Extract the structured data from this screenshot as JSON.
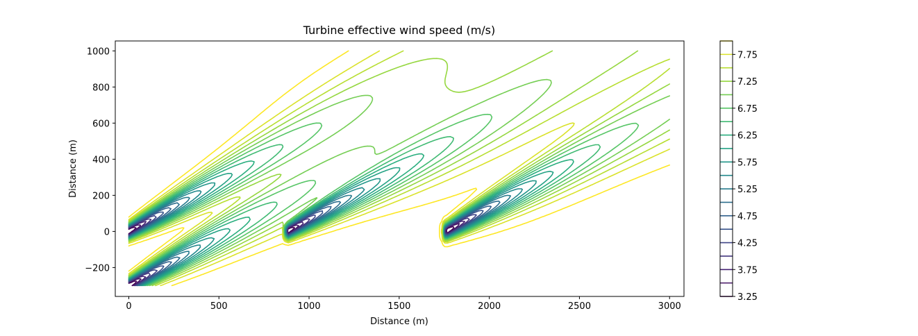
{
  "chart_data": {
    "type": "contour",
    "title": "Turbine effective wind speed (m/s)",
    "xlabel": "Distance (m)",
    "ylabel": "Distance (m)",
    "xlim": [
      -75,
      3080
    ],
    "ylim": [
      -360,
      1055
    ],
    "xticks": [
      "0",
      "500",
      "1000",
      "1500",
      "2000",
      "2500",
      "3000"
    ],
    "xtick_values": [
      0,
      500,
      1000,
      1500,
      2000,
      2500,
      3000
    ],
    "yticks": [
      "−200",
      "0",
      "200",
      "400",
      "600",
      "800",
      "1000"
    ],
    "ytick_values": [
      -200,
      0,
      200,
      400,
      600,
      800,
      1000
    ],
    "colormap": "viridis",
    "levels": [
      3.25,
      3.5,
      3.75,
      4.0,
      4.25,
      4.5,
      4.75,
      5.0,
      5.25,
      5.5,
      5.75,
      6.0,
      6.25,
      6.5,
      6.75,
      7.0,
      7.25,
      7.5,
      7.75,
      8.0
    ],
    "colorbar_ticks": [
      "3.25",
      "3.75",
      "4.25",
      "4.75",
      "5.25",
      "5.75",
      "6.25",
      "6.75",
      "7.25",
      "7.75"
    ],
    "colorbar_tick_values": [
      3.25,
      3.75,
      4.25,
      4.75,
      5.25,
      5.75,
      6.25,
      6.75,
      7.25,
      7.75
    ],
    "colorbar_range": [
      3.25,
      8.0
    ],
    "turbines": [
      {
        "x": 0,
        "y": 0
      },
      {
        "x": 0,
        "y": -300
      },
      {
        "x": 880,
        "y": 0
      },
      {
        "x": 1760,
        "y": 0
      }
    ],
    "grid": false,
    "legend": "colorbar-right"
  }
}
